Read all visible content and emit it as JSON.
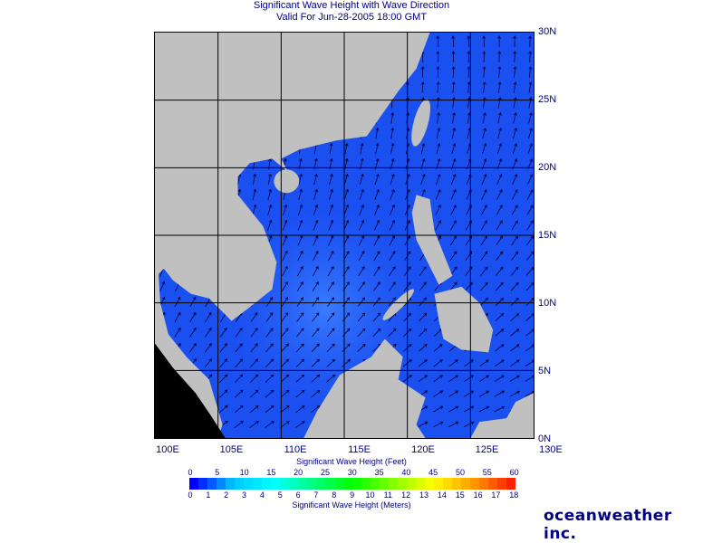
{
  "title": {
    "line1": "Significant Wave Height with Wave Direction",
    "line2": "Valid For Jun-28-2005 18:00 GMT"
  },
  "map": {
    "lon_range": [
      100,
      130
    ],
    "lat_range": [
      0,
      30
    ],
    "lon_labels": [
      "100E",
      "105E",
      "110E",
      "115E",
      "120E",
      "125E",
      "130E"
    ],
    "lat_labels": [
      "30N",
      "25N",
      "20N",
      "15N",
      "10N",
      "5N",
      "0N"
    ],
    "colors": {
      "sea": "#1a4ff0",
      "land": "#c0c0c0",
      "grid": "#000000",
      "arrow": "#000040"
    }
  },
  "legend": {
    "feet_label": "Significant Wave Height (Feet)",
    "meters_label": "Significant Wave Height (Meters)",
    "feet_ticks": [
      "0",
      "5",
      "10",
      "15",
      "20",
      "25",
      "30",
      "35",
      "40",
      "45",
      "50",
      "55",
      "60"
    ],
    "meter_ticks": [
      "0",
      "1",
      "2",
      "3",
      "4",
      "5",
      "6",
      "7",
      "8",
      "9",
      "10",
      "11",
      "12",
      "13",
      "14",
      "15",
      "16",
      "17",
      "18"
    ],
    "color_stops": [
      "#0000ff",
      "#00c8ff",
      "#00ffff",
      "#00ff80",
      "#00ff00",
      "#80ff00",
      "#ffff00",
      "#ffa000",
      "#ff2000"
    ]
  },
  "logo": "oceanweather inc."
}
